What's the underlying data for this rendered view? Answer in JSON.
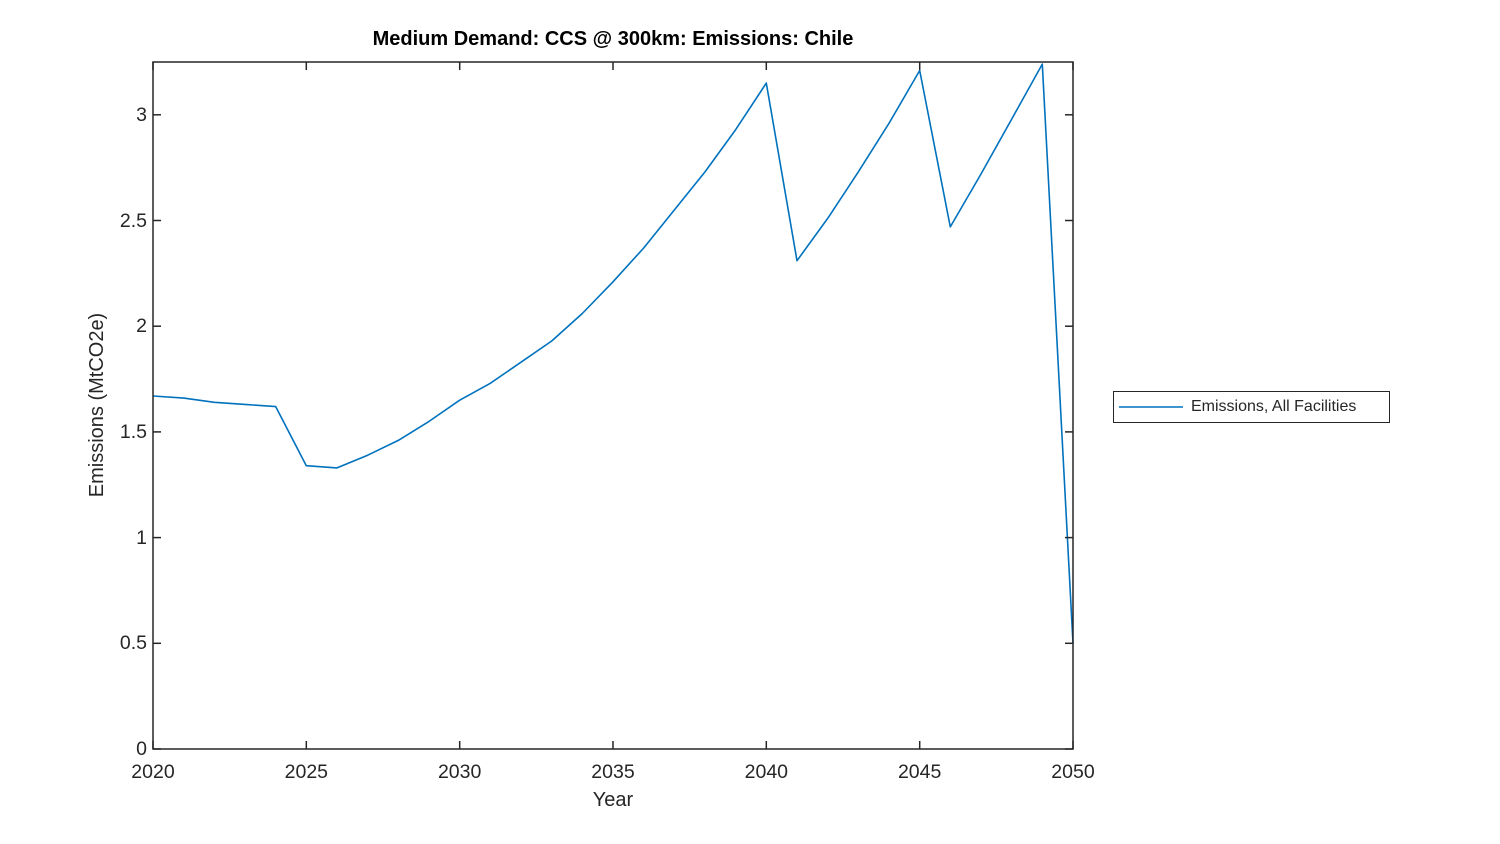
{
  "chart_data": {
    "type": "line",
    "title": "Medium Demand: CCS @ 300km: Emissions: Chile",
    "xlabel": "Year",
    "ylabel": "Emissions (MtCO2e)",
    "x": [
      2020,
      2021,
      2022,
      2023,
      2024,
      2025,
      2026,
      2027,
      2028,
      2029,
      2030,
      2031,
      2032,
      2033,
      2034,
      2035,
      2036,
      2037,
      2038,
      2039,
      2040,
      2041,
      2042,
      2043,
      2044,
      2045,
      2046,
      2047,
      2048,
      2049,
      2050
    ],
    "series": [
      {
        "name": "Emissions, All Facilities",
        "color": "#0072BD",
        "values": [
          1.67,
          1.66,
          1.64,
          1.63,
          1.62,
          1.34,
          1.33,
          1.39,
          1.46,
          1.55,
          1.65,
          1.73,
          1.83,
          1.93,
          2.06,
          2.21,
          2.37,
          2.55,
          2.73,
          2.93,
          3.15,
          2.31,
          2.51,
          2.73,
          2.96,
          3.21,
          2.47,
          2.72,
          2.98,
          3.24,
          0.5
        ]
      }
    ],
    "xlim": [
      2020,
      2050
    ],
    "ylim": [
      0,
      3.25
    ],
    "xticks": [
      2020,
      2025,
      2030,
      2035,
      2040,
      2045,
      2050
    ],
    "xtick_labels": [
      "2020",
      "2025",
      "2030",
      "2035",
      "2040",
      "2045",
      "2050"
    ],
    "yticks": [
      0,
      0.5,
      1,
      1.5,
      2,
      2.5,
      3
    ],
    "ytick_labels": [
      "0",
      "0.5",
      "1",
      "1.5",
      "2",
      "2.5",
      "3"
    ],
    "grid": false,
    "legend": {
      "position": "right-outside",
      "entries": [
        "Emissions, All Facilities"
      ]
    }
  },
  "colors": {
    "line": "#0072BD",
    "axis": "#262626",
    "background": "#ffffff"
  }
}
